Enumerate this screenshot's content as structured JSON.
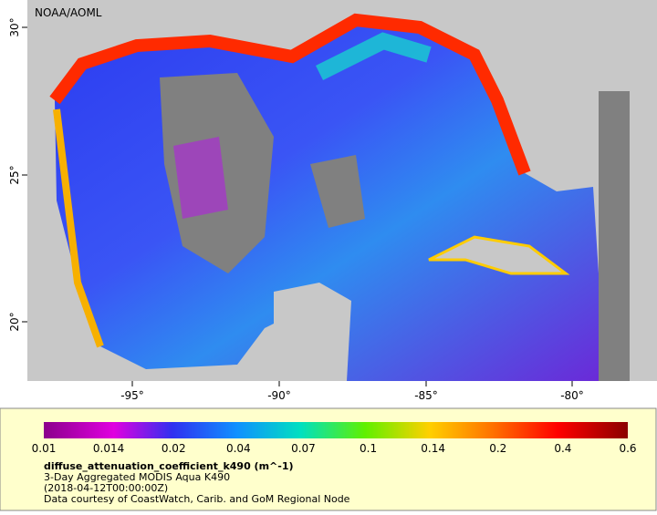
{
  "map": {
    "credit": "NOAA/AOML",
    "lat_labels": [
      "30°",
      "25°",
      "20°"
    ],
    "lon_labels": [
      "-95°",
      "-90°",
      "-85°",
      "-80°"
    ]
  },
  "legend": {
    "colorbar_labels": [
      "0.01",
      "0.014",
      "0.02",
      "0.04",
      "0.07",
      "0.1",
      "0.14",
      "0.2",
      "0.4",
      "0.6"
    ],
    "variable": "diffuse_attenuation_coefficient_k490 (m^-1)",
    "title": "3-Day Aggregated MODIS Aqua K490",
    "date": "(2018-04-12T00:00:00Z)",
    "source": "Data courtesy of CoastWatch, Carib. and GoM Regional Node"
  }
}
